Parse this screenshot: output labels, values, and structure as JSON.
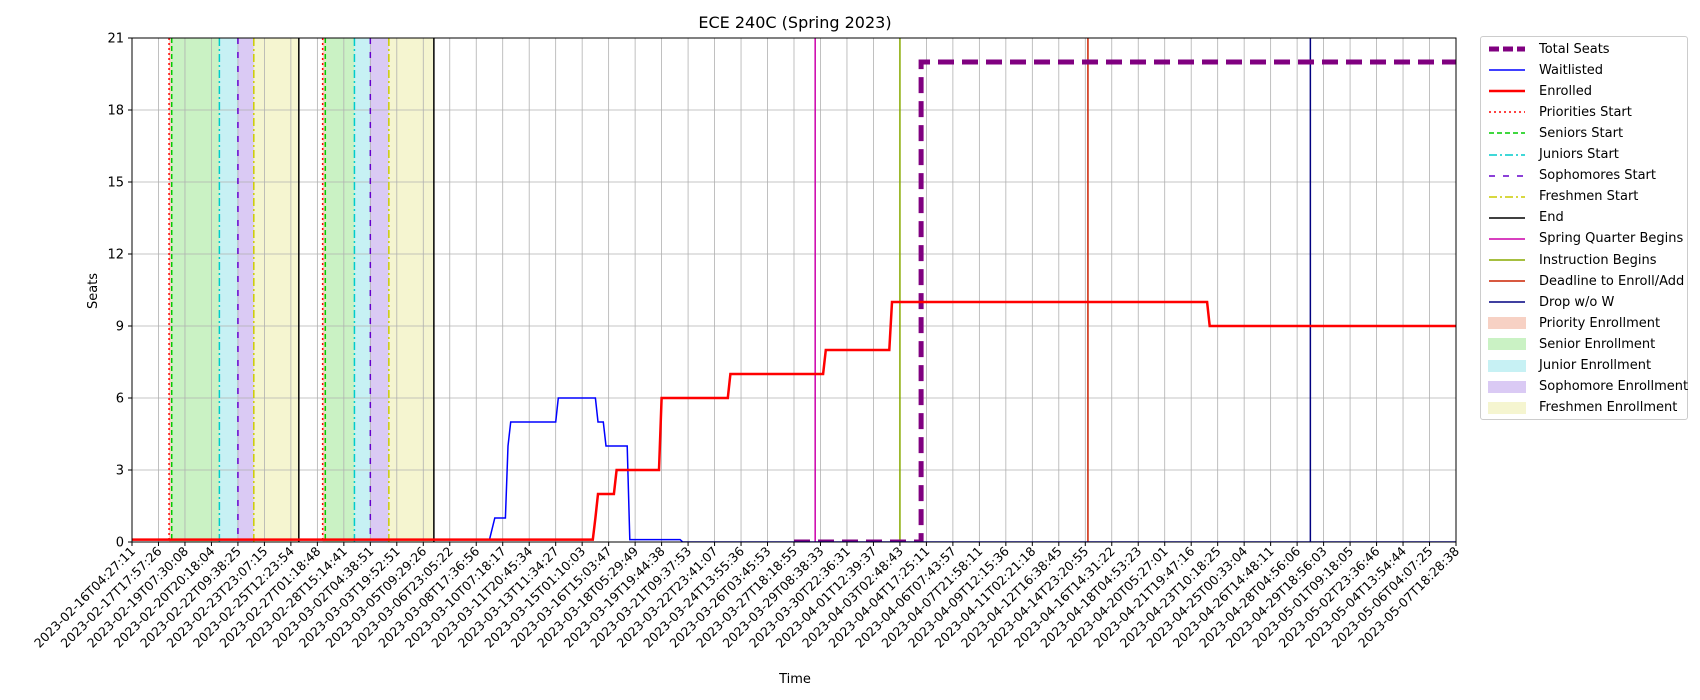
{
  "chart_data": {
    "type": "line",
    "title": "ECE 240C (Spring 2023)",
    "xlabel": "Time",
    "ylabel": "Seats",
    "ylim": [
      0,
      21
    ],
    "yticks": [
      0,
      3,
      6,
      9,
      12,
      15,
      18,
      21
    ],
    "xlim": [
      "2023-02-16T04:27:11",
      "2023-05-07T18:28:38"
    ],
    "grid": true,
    "legend_position": "outside-top-right",
    "xtick_labels": [
      "2023-02-16T04:27:11",
      "2023-02-17T17:57:26",
      "2023-02-19T07:30:08",
      "2023-02-20T20:18:04",
      "2023-02-22T09:38:25",
      "2023-02-23T23:07:15",
      "2023-02-25T12:23:54",
      "2023-02-27T01:18:48",
      "2023-02-28T15:14:41",
      "2023-03-02T04:38:51",
      "2023-03-03T19:52:51",
      "2023-03-05T09:29:26",
      "2023-03-06T23:05:22",
      "2023-03-08T17:36:56",
      "2023-03-10T07:18:17",
      "2023-03-11T20:45:34",
      "2023-03-13T11:34:27",
      "2023-03-15T01:10:03",
      "2023-03-16T15:03:47",
      "2023-03-18T05:29:49",
      "2023-03-19T19:44:38",
      "2023-03-21T09:37:53",
      "2023-03-22T23:41:07",
      "2023-03-24T13:55:36",
      "2023-03-26T03:45:53",
      "2023-03-27T18:18:55",
      "2023-03-29T08:38:33",
      "2023-03-30T22:36:31",
      "2023-04-01T12:39:37",
      "2023-04-03T02:48:43",
      "2023-04-04T17:25:11",
      "2023-04-06T07:43:57",
      "2023-04-07T21:58:11",
      "2023-04-09T12:15:36",
      "2023-04-11T02:21:18",
      "2023-04-12T16:38:45",
      "2023-04-14T23:20:55",
      "2023-04-16T14:31:22",
      "2023-04-18T04:53:23",
      "2023-04-20T05:27:01",
      "2023-04-21T19:47:16",
      "2023-04-23T10:18:25",
      "2023-04-25T00:33:04",
      "2023-04-26T14:48:11",
      "2023-04-28T04:56:06",
      "2023-04-29T18:56:03",
      "2023-05-01T09:18:05",
      "2023-05-02T23:36:46",
      "2023-05-04T13:54:44",
      "2023-05-06T04:07:25",
      "2023-05-07T18:28:38"
    ],
    "series": [
      {
        "name": "Total Seats",
        "color": "#800080",
        "style": "dashed-thick",
        "points": [
          [
            25.0,
            0
          ],
          [
            29.8,
            0
          ],
          [
            29.8,
            20
          ],
          [
            50,
            20
          ]
        ]
      },
      {
        "name": "Waitlisted",
        "color": "#0000ff",
        "style": "solid",
        "points": [
          [
            0,
            0.1
          ],
          [
            6.8,
            0.1
          ],
          [
            6.8,
            0.1
          ],
          [
            13.5,
            0.1
          ],
          [
            13.7,
            1
          ],
          [
            14.1,
            1
          ],
          [
            14.2,
            4
          ],
          [
            14.3,
            5
          ],
          [
            16.0,
            5
          ],
          [
            16.1,
            6
          ],
          [
            17.5,
            6
          ],
          [
            17.6,
            5
          ],
          [
            17.8,
            5
          ],
          [
            17.9,
            4
          ],
          [
            18.7,
            4
          ],
          [
            18.8,
            0.1
          ],
          [
            20.7,
            0.1
          ],
          [
            20.8,
            0
          ],
          [
            50,
            0
          ]
        ]
      },
      {
        "name": "Enrolled",
        "color": "#ff0000",
        "style": "solid",
        "points": [
          [
            0,
            0.1
          ],
          [
            16.8,
            0.1
          ],
          [
            16.8,
            0.1
          ],
          [
            17.4,
            0.1
          ],
          [
            17.5,
            1
          ],
          [
            17.6,
            2
          ],
          [
            18.2,
            2
          ],
          [
            18.3,
            3
          ],
          [
            19.9,
            3
          ],
          [
            20.0,
            6
          ],
          [
            22.5,
            6
          ],
          [
            22.6,
            7
          ],
          [
            26.1,
            7
          ],
          [
            26.2,
            8
          ],
          [
            28.6,
            8
          ],
          [
            28.7,
            10
          ],
          [
            40.6,
            10
          ],
          [
            40.7,
            9
          ],
          [
            50,
            9
          ]
        ]
      }
    ],
    "event_lines": [
      {
        "name": "Priorities Start",
        "color": "#ff0000",
        "style": "dotted",
        "x": [
          1.4,
          7.2
        ]
      },
      {
        "name": "Seniors Start",
        "color": "#00cc00",
        "style": "dashed",
        "x": [
          1.5,
          7.3
        ]
      },
      {
        "name": "Juniors Start",
        "color": "#00cccc",
        "style": "dashdot",
        "x": [
          3.3,
          8.4
        ]
      },
      {
        "name": "Sophomores Start",
        "color": "#6600cc",
        "style": "loosedash",
        "x": [
          4.0,
          9.0
        ]
      },
      {
        "name": "Freshmen Start",
        "color": "#cccc00",
        "style": "dashdot",
        "x": [
          4.6,
          9.7
        ]
      },
      {
        "name": "End",
        "color": "#000000",
        "style": "solid",
        "x": [
          6.3,
          11.4
        ]
      },
      {
        "name": "Spring Quarter Begins",
        "color": "#cc00aa",
        "style": "solid",
        "x": [
          25.8
        ]
      },
      {
        "name": "Instruction Begins",
        "color": "#88aa00",
        "style": "solid",
        "x": [
          29.0
        ]
      },
      {
        "name": "Deadline to Enroll/Add",
        "color": "#cc2200",
        "style": "solid",
        "x": [
          36.1
        ]
      },
      {
        "name": "Drop w/o W",
        "color": "#000080",
        "style": "solid",
        "x": [
          44.5
        ]
      }
    ],
    "shaded_regions": [
      {
        "name": "Priority Enrollment",
        "color": "#f4c2b0",
        "spans": [
          [
            1.4,
            1.5
          ],
          [
            7.2,
            7.3
          ]
        ]
      },
      {
        "name": "Senior Enrollment",
        "color": "#b8eeb0",
        "spans": [
          [
            1.5,
            3.3
          ],
          [
            7.3,
            8.4
          ]
        ]
      },
      {
        "name": "Junior Enrollment",
        "color": "#b4ecf0",
        "spans": [
          [
            3.3,
            4.0
          ],
          [
            8.4,
            9.0
          ]
        ]
      },
      {
        "name": "Sophomore Enrollment",
        "color": "#cdb8f0",
        "spans": [
          [
            4.0,
            4.6
          ],
          [
            9.0,
            9.7
          ]
        ]
      },
      {
        "name": "Freshmen Enrollment",
        "color": "#f2f2c0",
        "spans": [
          [
            4.6,
            6.3
          ],
          [
            9.7,
            11.4
          ]
        ]
      }
    ]
  }
}
